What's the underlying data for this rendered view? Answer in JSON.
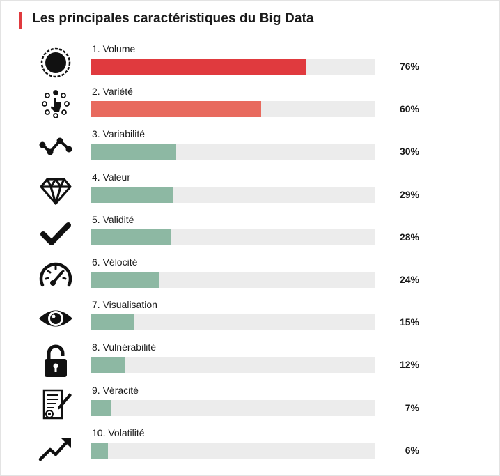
{
  "title": "Les principales caractéristiques du Big Data",
  "colors": {
    "accent": "#e03a3e",
    "second": "#e86a5e",
    "green": "#8db8a3",
    "track": "#ececec",
    "title_bar": "#e03a3e"
  },
  "chart_data": {
    "type": "bar",
    "orientation": "horizontal",
    "title": "Les principales caractéristiques du Big Data",
    "unit": "%",
    "xlim": [
      0,
      100
    ],
    "grid": false,
    "categories": [
      "1. Volume",
      "2. Variété",
      "3. Variabilité",
      "4. Valeur",
      "5. Validité",
      "6. Vélocité",
      "7. Visualisation",
      "8. Vulnérabilité",
      "9. Véracité",
      "10. Volatilité"
    ],
    "values": [
      76,
      60,
      30,
      29,
      28,
      24,
      15,
      12,
      7,
      6
    ],
    "value_labels": [
      "76%",
      "60%",
      "30%",
      "29%",
      "28%",
      "24%",
      "15%",
      "12%",
      "7%",
      "6%"
    ],
    "bar_colors": [
      "#e03a3e",
      "#e86a5e",
      "#8db8a3",
      "#8db8a3",
      "#8db8a3",
      "#8db8a3",
      "#8db8a3",
      "#8db8a3",
      "#8db8a3",
      "#8db8a3"
    ],
    "icons": [
      "volume-icon",
      "variety-icon",
      "variability-icon",
      "diamond-icon",
      "checkmark-icon",
      "speedometer-icon",
      "eye-icon",
      "padlock-icon",
      "certificate-icon",
      "trend-up-icon"
    ]
  }
}
